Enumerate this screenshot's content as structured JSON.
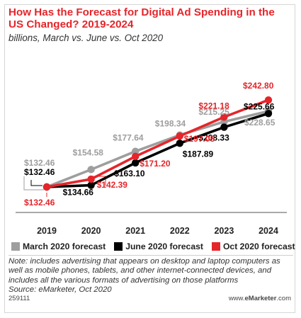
{
  "header": {
    "title": "How Has the Forecast for Digital Ad Spending in the US Changed? 2019-2024",
    "subtitle": "billions, March vs. June vs. Oct 2020"
  },
  "chart_data": {
    "type": "line",
    "title": "How Has the Forecast for Digital Ad Spending in the US Changed? 2019-2024",
    "subtitle": "billions, March vs. June vs. Oct 2020",
    "categories": [
      "2019",
      "2020",
      "2021",
      "2022",
      "2023",
      "2024"
    ],
    "ylim": [
      120,
      250
    ],
    "grid": false,
    "legend": "bottom",
    "series": [
      {
        "name": "March 2020 forecast",
        "color": "#9e9e9e",
        "values": [
          132.46,
          154.58,
          177.64,
          198.34,
          215.25,
          228.65
        ],
        "labels": [
          "$132.46",
          "$154.58",
          "$177.64",
          "$198.34",
          "$215.25",
          "$228.65"
        ]
      },
      {
        "name": "June 2020 forecast",
        "color": "#000000",
        "values": [
          132.46,
          134.66,
          163.1,
          187.89,
          208.33,
          225.66
        ],
        "labels": [
          "$132.46",
          "$134.66",
          "$163.10",
          "$187.89",
          "$208.33",
          "$225.66"
        ]
      },
      {
        "name": "Oct 2020 forecast",
        "color": "#e5252a",
        "values": [
          132.46,
          142.39,
          171.2,
          197.05,
          221.18,
          242.8
        ],
        "labels": [
          "$132.46",
          "$142.39",
          "$171.20",
          "$197.05",
          "$221.18",
          "$242.80"
        ]
      }
    ]
  },
  "footer": {
    "note": "Note: includes advertising that appears on desktop and laptop computers as well as mobile phones, tablets, and other internet-connected devices, and includes all the various formats of advertising on those platforms",
    "source": "Source: eMarketer, Oct 2020",
    "chart_id": "259111",
    "brand_prefix": "www.",
    "brand_name": "eMarketer",
    "brand_suffix": ".com"
  }
}
